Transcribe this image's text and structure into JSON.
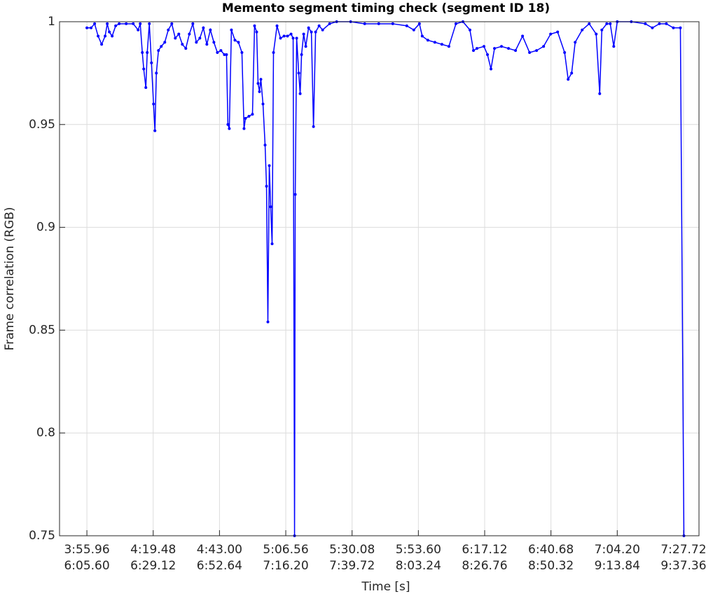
{
  "chart_data": {
    "type": "line",
    "title": "Memento segment timing check (segment ID 18)",
    "x_label": "Time [s]",
    "y_label": "Frame correlation (RGB)",
    "xlim": [
      226.25,
      453.12
    ],
    "ylim": [
      0.75,
      1
    ],
    "xticks": [
      {
        "value": 235.96,
        "label": [
          "3:55.96",
          "6:05.60"
        ]
      },
      {
        "value": 259.48,
        "label": [
          "4:19.48",
          "6:29.12"
        ]
      },
      {
        "value": 283.0,
        "label": [
          "4:43.00",
          "6:52.64"
        ]
      },
      {
        "value": 306.52,
        "label": [
          "5:06.56",
          "7:16.20"
        ]
      },
      {
        "value": 330.04,
        "label": [
          "5:30.08",
          "7:39.72"
        ]
      },
      {
        "value": 353.56,
        "label": [
          "5:53.60",
          "8:03.24"
        ]
      },
      {
        "value": 377.08,
        "label": [
          "6:17.12",
          "8:26.76"
        ]
      },
      {
        "value": 400.6,
        "label": [
          "6:40.68",
          "8:50.32"
        ]
      },
      {
        "value": 424.12,
        "label": [
          "7:04.20",
          "9:13.84"
        ]
      },
      {
        "value": 447.64,
        "label": [
          "7:27.72",
          "9:37.36"
        ]
      }
    ],
    "yticks": [
      0.75,
      0.8,
      0.85,
      0.9,
      0.95,
      1
    ],
    "grid": true,
    "color": "#0000ff",
    "x": [
      235.96,
      237.45,
      238.7,
      239.94,
      241.19,
      242.43,
      243.18,
      243.92,
      244.92,
      246.16,
      247.41,
      249.9,
      252.39,
      254.13,
      254.88,
      255.62,
      256.12,
      256.87,
      257.36,
      258.11,
      258.86,
      259.6,
      260.1,
      260.6,
      261.35,
      262.34,
      263.59,
      264.83,
      266.08,
      267.32,
      268.56,
      269.81,
      271.05,
      272.3,
      273.54,
      274.79,
      276.03,
      277.28,
      278.52,
      279.76,
      281.01,
      282.25,
      283.5,
      284.74,
      285.49,
      285.99,
      286.48,
      287.23,
      288.48,
      289.72,
      290.96,
      291.71,
      292.21,
      293.45,
      294.7,
      295.44,
      296.19,
      296.69,
      297.19,
      297.68,
      298.43,
      299.18,
      299.68,
      300.17,
      300.67,
      301.17,
      301.67,
      302.16,
      303.41,
      304.65,
      305.9,
      307.14,
      308.39,
      309.13,
      309.63,
      309.88,
      310.38,
      311.12,
      311.62,
      312.12,
      312.87,
      313.61,
      314.61,
      315.6,
      316.35,
      317.1,
      318.34,
      319.59,
      322.08,
      324.56,
      329.54,
      334.52,
      339.5,
      344.48,
      349.45,
      351.94,
      353.93,
      354.93,
      356.92,
      359.41,
      361.9,
      364.39,
      366.88,
      369.37,
      371.85,
      373.1,
      374.34,
      376.83,
      378.08,
      379.32,
      380.57,
      383.05,
      385.54,
      388.03,
      390.52,
      393.01,
      395.5,
      397.99,
      400.48,
      402.97,
      405.45,
      406.7,
      407.94,
      409.19,
      411.68,
      414.17,
      416.65,
      417.9,
      418.65,
      420.39,
      421.63,
      422.88,
      424.12,
      429.1,
      434.08,
      436.57,
      439.06,
      441.54,
      444.03,
      446.52,
      447.77
    ],
    "values": [
      0.997,
      0.997,
      0.999,
      0.993,
      0.989,
      0.993,
      0.999,
      0.995,
      0.993,
      0.998,
      0.999,
      0.999,
      0.999,
      0.996,
      0.999,
      0.985,
      0.977,
      0.968,
      0.985,
      0.999,
      0.98,
      0.96,
      0.947,
      0.975,
      0.986,
      0.988,
      0.99,
      0.996,
      0.999,
      0.992,
      0.994,
      0.989,
      0.987,
      0.994,
      0.999,
      0.99,
      0.992,
      0.997,
      0.989,
      0.996,
      0.99,
      0.985,
      0.986,
      0.984,
      0.984,
      0.95,
      0.948,
      0.996,
      0.991,
      0.99,
      0.985,
      0.948,
      0.953,
      0.954,
      0.955,
      0.998,
      0.995,
      0.97,
      0.966,
      0.972,
      0.96,
      0.94,
      0.92,
      0.854,
      0.93,
      0.91,
      0.892,
      0.985,
      0.998,
      0.992,
      0.993,
      0.993,
      0.994,
      0.992,
      0.75,
      0.916,
      0.992,
      0.975,
      0.965,
      0.984,
      0.994,
      0.988,
      0.997,
      0.995,
      0.949,
      0.995,
      0.998,
      0.996,
      0.999,
      1.0,
      1.0,
      0.999,
      0.999,
      0.999,
      0.998,
      0.996,
      0.999,
      0.993,
      0.991,
      0.99,
      0.989,
      0.988,
      0.999,
      1.0,
      0.996,
      0.986,
      0.987,
      0.988,
      0.984,
      0.977,
      0.987,
      0.988,
      0.987,
      0.986,
      0.993,
      0.985,
      0.986,
      0.988,
      0.994,
      0.995,
      0.985,
      0.972,
      0.975,
      0.99,
      0.996,
      0.999,
      0.994,
      0.965,
      0.996,
      0.999,
      0.999,
      0.988,
      1.0,
      1.0,
      0.999,
      0.997,
      0.999,
      0.999,
      0.997,
      0.997,
      0.75
    ]
  }
}
